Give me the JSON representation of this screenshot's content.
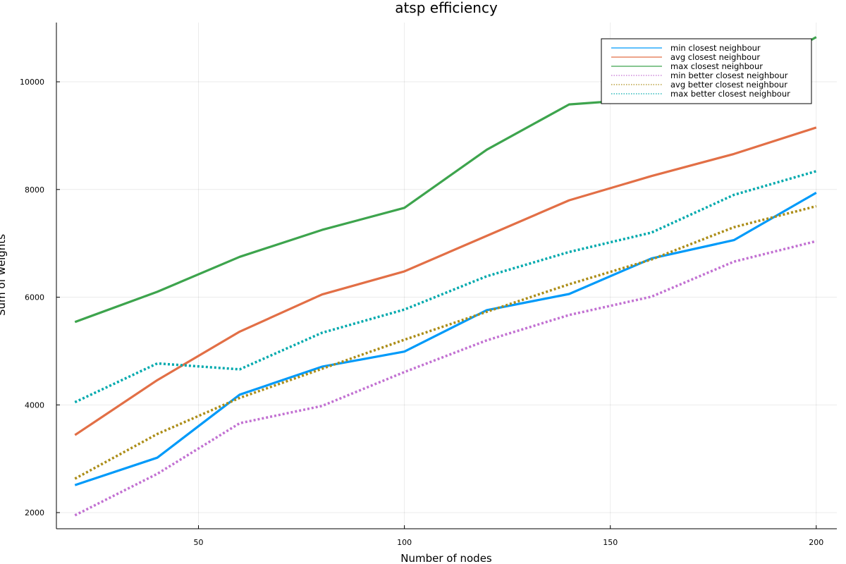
{
  "chart_data": {
    "type": "line",
    "title": "atsp efficiency",
    "xlabel": "Number of nodes",
    "ylabel": "Sum of weights",
    "xlim": [
      15.5,
      205
    ],
    "ylim": [
      1700,
      11100
    ],
    "xticks": [
      50,
      100,
      150,
      200
    ],
    "yticks": [
      2000,
      4000,
      6000,
      8000,
      10000
    ],
    "grid": true,
    "legend_position": "top-right",
    "x": [
      20,
      40,
      60,
      80,
      100,
      120,
      140,
      160,
      180,
      200
    ],
    "series": [
      {
        "name": "min closest neighbour",
        "color": "#009af9",
        "style": "solid",
        "values": [
          2510,
          3020,
          4190,
          4710,
          4990,
          5760,
          6060,
          6720,
          7060,
          7940
        ]
      },
      {
        "name": "avg closest neighbour",
        "color": "#e26f46",
        "style": "solid",
        "values": [
          3440,
          4460,
          5360,
          6050,
          6480,
          7140,
          7800,
          8250,
          8660,
          9150
        ]
      },
      {
        "name": "max closest neighbour",
        "color": "#3da44d",
        "style": "solid",
        "values": [
          5540,
          6100,
          6750,
          7250,
          7660,
          8740,
          9580,
          9690,
          9970,
          10830
        ]
      },
      {
        "name": "min better closest neighbour",
        "color": "#c271d2",
        "style": "dotted",
        "values": [
          1950,
          2720,
          3660,
          3980,
          4610,
          5200,
          5670,
          6010,
          6660,
          7040
        ]
      },
      {
        "name": "avg better closest neighbour",
        "color": "#ac8d18",
        "style": "dotted",
        "values": [
          2630,
          3460,
          4130,
          4670,
          5210,
          5730,
          6240,
          6700,
          7300,
          7690
        ]
      },
      {
        "name": "max better closest neighbour",
        "color": "#00a9ad",
        "style": "dotted",
        "values": [
          4050,
          4770,
          4660,
          5340,
          5770,
          6390,
          6840,
          7200,
          7900,
          8340
        ]
      }
    ]
  }
}
